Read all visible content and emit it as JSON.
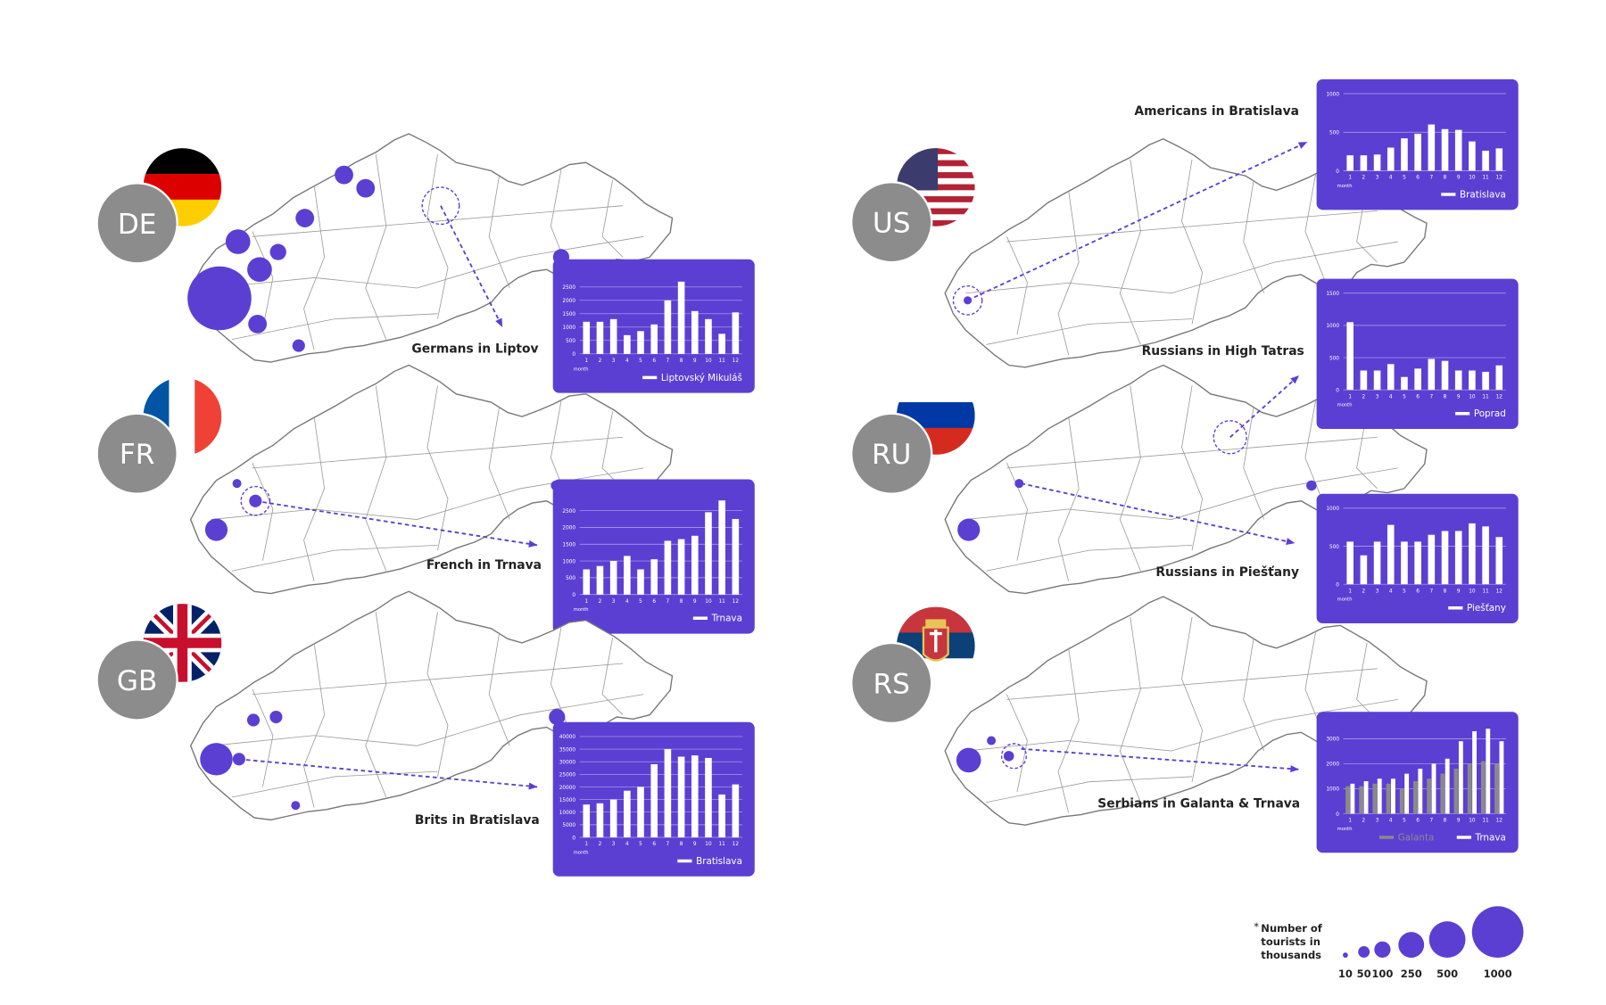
{
  "chart_data": [
    {
      "type": "bar",
      "title": "Germans in Liptov",
      "xlabel": "month",
      "categories": [
        1,
        2,
        3,
        4,
        5,
        6,
        7,
        8,
        9,
        10,
        11,
        12
      ],
      "series": [
        {
          "name": "Liptovský Mikuláš",
          "color": "#ffffff",
          "values": [
            1200,
            1200,
            1300,
            700,
            850,
            1100,
            2000,
            2700,
            1600,
            1300,
            750,
            1550
          ]
        }
      ],
      "ylim": [
        0,
        3000
      ],
      "yticks": [
        0,
        500,
        1000,
        1500,
        2000,
        2500
      ],
      "grid": true
    },
    {
      "type": "bar",
      "title": "French in Trnava",
      "xlabel": "month",
      "categories": [
        1,
        2,
        3,
        4,
        5,
        6,
        7,
        8,
        9,
        10,
        11,
        12
      ],
      "series": [
        {
          "name": "Trnava",
          "color": "#ffffff",
          "values": [
            750,
            850,
            1000,
            1150,
            750,
            1050,
            1600,
            1650,
            1750,
            2450,
            2800,
            2250
          ]
        }
      ],
      "ylim": [
        0,
        3000
      ],
      "yticks": [
        0,
        500,
        1000,
        1500,
        2000,
        2500
      ],
      "grid": true
    },
    {
      "type": "bar",
      "title": "Brits in Bratislava",
      "xlabel": "month",
      "categories": [
        1,
        2,
        3,
        4,
        5,
        6,
        7,
        8,
        9,
        10,
        11,
        12
      ],
      "series": [
        {
          "name": "Bratislava",
          "color": "#ffffff",
          "values": [
            13000,
            13500,
            15000,
            18500,
            20000,
            29000,
            35000,
            32000,
            32500,
            31500,
            17000,
            21000
          ]
        }
      ],
      "ylim": [
        0,
        40000
      ],
      "yticks": [
        0,
        5000,
        10000,
        15000,
        20000,
        25000,
        30000,
        35000,
        40000
      ],
      "grid": true
    },
    {
      "type": "bar",
      "title": "Americans in Bratislava",
      "xlabel": "month",
      "categories": [
        1,
        2,
        3,
        4,
        5,
        6,
        7,
        8,
        9,
        10,
        11,
        12
      ],
      "series": [
        {
          "name": "Bratislava",
          "color": "#ffffff",
          "values": [
            200,
            200,
            210,
            300,
            420,
            480,
            600,
            540,
            530,
            380,
            260,
            290
          ]
        }
      ],
      "ylim": [
        0,
        1000
      ],
      "yticks": [
        0,
        500,
        1000
      ],
      "grid": true
    },
    {
      "type": "bar",
      "title": "Russians in High Tatras",
      "xlabel": "month",
      "categories": [
        1,
        2,
        3,
        4,
        5,
        6,
        7,
        8,
        9,
        10,
        11,
        12
      ],
      "series": [
        {
          "name": "Poprad",
          "color": "#ffffff",
          "values": [
            1050,
            300,
            300,
            400,
            200,
            330,
            480,
            450,
            300,
            300,
            280,
            380
          ]
        }
      ],
      "ylim": [
        0,
        1500
      ],
      "yticks": [
        0,
        500,
        1000,
        1500
      ],
      "grid": true
    },
    {
      "type": "bar",
      "title": "Russians in Piešťany",
      "xlabel": "month",
      "categories": [
        1,
        2,
        3,
        4,
        5,
        6,
        7,
        8,
        9,
        10,
        11,
        12
      ],
      "series": [
        {
          "name": "Piešťany",
          "color": "#ffffff",
          "values": [
            560,
            380,
            560,
            780,
            560,
            560,
            650,
            700,
            700,
            800,
            760,
            620
          ]
        }
      ],
      "ylim": [
        0,
        1000
      ],
      "yticks": [
        0,
        500,
        1000
      ],
      "grid": true
    },
    {
      "type": "bar",
      "title": "Serbians in Galanta & Trnava",
      "xlabel": "month",
      "categories": [
        1,
        2,
        3,
        4,
        5,
        6,
        7,
        8,
        9,
        10,
        11,
        12
      ],
      "series": [
        {
          "name": "Galanta",
          "color": "#8a8a8a",
          "values": [
            1100,
            1100,
            1200,
            1200,
            1000,
            1300,
            1400,
            1600,
            1800,
            2000,
            2100,
            2000
          ]
        },
        {
          "name": "Trnava",
          "color": "#ffffff",
          "values": [
            1200,
            1300,
            1400,
            1400,
            1600,
            1800,
            2000,
            2200,
            2900,
            3300,
            3400,
            2900
          ]
        }
      ],
      "ylim": [
        0,
        3500
      ],
      "yticks": [
        0,
        1000,
        2000,
        3000
      ],
      "grid": true
    }
  ],
  "panels": [
    {
      "code": "DE",
      "bubbles": [
        1540,
        230,
        230,
        100,
        130,
        130,
        130,
        100,
        130,
        60
      ]
    },
    {
      "code": "FR",
      "bubbles": [
        190,
        60,
        40,
        30
      ]
    },
    {
      "code": "GB",
      "bubbles": [
        400,
        60,
        100,
        60,
        60,
        30
      ]
    },
    {
      "code": "US",
      "bubbles": [
        25
      ]
    },
    {
      "code": "RU",
      "bubbles": [
        190,
        60,
        40,
        30
      ]
    },
    {
      "code": "RS",
      "bubbles": [
        230,
        40,
        30
      ]
    }
  ],
  "legend": {
    "note": "*",
    "title": [
      "Number of",
      "tourists in",
      "thousands"
    ],
    "sizes": [
      10,
      50,
      100,
      250,
      500,
      1000
    ]
  }
}
